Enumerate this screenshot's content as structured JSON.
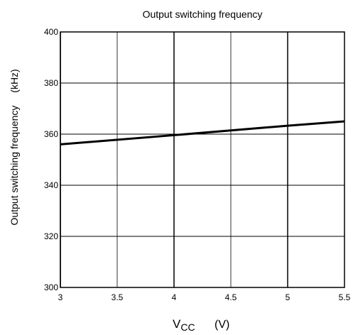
{
  "chart_data": {
    "type": "line",
    "title": "Output switching frequency",
    "xlabel_main": "V",
    "xlabel_sub": "CC",
    "xlabel_unit": "(V)",
    "ylabel": "Output switching frequency",
    "ylabel_unit": "(kHz)",
    "xlim": [
      3,
      5.5
    ],
    "ylim": [
      300,
      400
    ],
    "xticks": [
      3,
      3.5,
      4,
      4.5,
      5,
      5.5
    ],
    "xtick_labels": [
      "3",
      "3.5",
      "4",
      "4.5",
      "5",
      "5.5"
    ],
    "yticks": [
      300,
      320,
      340,
      360,
      380,
      400
    ],
    "ytick_labels": [
      "300",
      "320",
      "340",
      "360",
      "380",
      "400"
    ],
    "grid": true,
    "series": [
      {
        "x": [
          3,
          4,
          5,
          5.5
        ],
        "y": [
          356,
          359.6,
          363.3,
          365
        ]
      }
    ],
    "line_color": "#000000"
  }
}
